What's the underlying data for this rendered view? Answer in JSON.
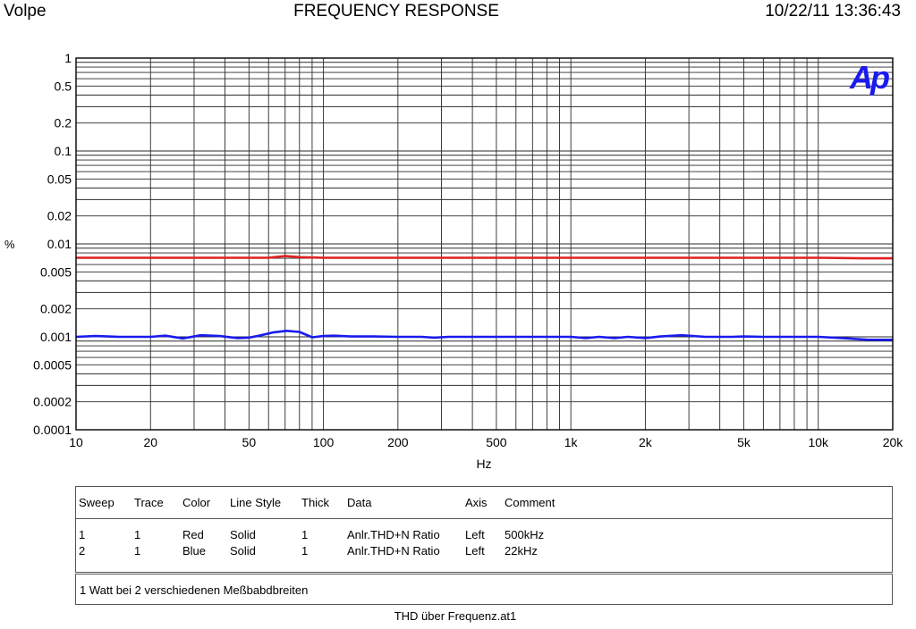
{
  "header": {
    "left": "Volpe",
    "center": "FREQUENCY RESPONSE",
    "right": "10/22/11 13:36:43"
  },
  "logo_text": "Ap",
  "chart_data": {
    "type": "line",
    "title": "FREQUENCY RESPONSE",
    "xlabel": "Hz",
    "ylabel": "%",
    "xscale": "log",
    "yscale": "log",
    "xlim": [
      10,
      20000
    ],
    "ylim": [
      0.0001,
      1
    ],
    "grid": true,
    "x_tick_labels": [
      {
        "v": 10,
        "label": "10"
      },
      {
        "v": 20,
        "label": "20"
      },
      {
        "v": 50,
        "label": "50"
      },
      {
        "v": 100,
        "label": "100"
      },
      {
        "v": 200,
        "label": "200"
      },
      {
        "v": 500,
        "label": "500"
      },
      {
        "v": 1000,
        "label": "1k"
      },
      {
        "v": 2000,
        "label": "2k"
      },
      {
        "v": 5000,
        "label": "5k"
      },
      {
        "v": 10000,
        "label": "10k"
      },
      {
        "v": 20000,
        "label": "20k"
      }
    ],
    "y_tick_labels": [
      {
        "v": 1,
        "label": "1"
      },
      {
        "v": 0.5,
        "label": "0.5"
      },
      {
        "v": 0.2,
        "label": "0.2"
      },
      {
        "v": 0.1,
        "label": "0.1"
      },
      {
        "v": 0.05,
        "label": "0.05"
      },
      {
        "v": 0.02,
        "label": "0.02"
      },
      {
        "v": 0.01,
        "label": "0.01"
      },
      {
        "v": 0.005,
        "label": "0.005"
      },
      {
        "v": 0.002,
        "label": "0.002"
      },
      {
        "v": 0.001,
        "label": "0.001"
      },
      {
        "v": 0.0005,
        "label": "0.0005"
      },
      {
        "v": 0.0002,
        "label": "0.0002"
      },
      {
        "v": 0.0001,
        "label": "0.0001"
      }
    ],
    "series": [
      {
        "color": "#e02020",
        "x": [
          10,
          20,
          40,
          60,
          70,
          80,
          100,
          200,
          500,
          1000,
          2000,
          5000,
          10000,
          15000,
          20000
        ],
        "y": [
          0.0071,
          0.0071,
          0.0071,
          0.0071,
          0.0074,
          0.0072,
          0.0071,
          0.0071,
          0.0071,
          0.0071,
          0.0071,
          0.0071,
          0.0071,
          0.007,
          0.007
        ]
      },
      {
        "color": "#1a1aee",
        "x": [
          10,
          12,
          15,
          20,
          23,
          27,
          32,
          38,
          45,
          50,
          55,
          63,
          71,
          80,
          90,
          100,
          110,
          130,
          160,
          200,
          250,
          280,
          320,
          400,
          500,
          630,
          800,
          1000,
          1150,
          1300,
          1500,
          1700,
          2000,
          2300,
          2800,
          3500,
          4500,
          5000,
          6000,
          8000,
          10000,
          12500,
          16000,
          20000
        ],
        "y": [
          0.001,
          0.00102,
          0.001,
          0.001,
          0.00103,
          0.00096,
          0.00104,
          0.00102,
          0.00097,
          0.00098,
          0.00103,
          0.00112,
          0.00116,
          0.00113,
          0.00099,
          0.00102,
          0.00103,
          0.00101,
          0.00101,
          0.001,
          0.001,
          0.00098,
          0.001,
          0.001,
          0.001,
          0.001,
          0.001,
          0.001,
          0.00097,
          0.001,
          0.00097,
          0.001,
          0.00097,
          0.00101,
          0.00104,
          0.001,
          0.001,
          0.00101,
          0.001,
          0.001,
          0.001,
          0.00097,
          0.00093,
          0.00093
        ]
      }
    ]
  },
  "legend": {
    "headers": [
      "Sweep",
      "Trace",
      "Color",
      "Line Style",
      "Thick",
      "Data",
      "Axis",
      "Comment"
    ],
    "rows": [
      [
        "1",
        "1",
        "Red",
        "Solid",
        "1",
        "Anlr.THD+N Ratio",
        "Left",
        "500kHz"
      ],
      [
        "2",
        "1",
        "Blue",
        "Solid",
        "1",
        "Anlr.THD+N Ratio",
        "Left",
        "22kHz"
      ]
    ],
    "note": "1 Watt bei 2 verschiedenen Meßbabdbreiten"
  },
  "footer": "THD über Frequenz.at1"
}
